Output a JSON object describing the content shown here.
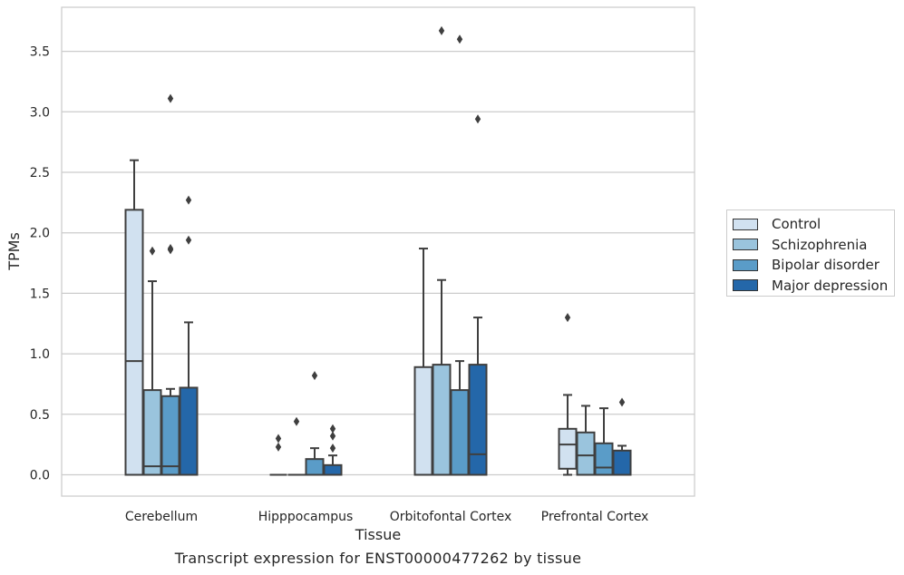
{
  "chart_data": {
    "type": "box",
    "xlabel": "Tissue",
    "ylabel": "TPMs",
    "caption": "Transcript expression for ENST00000477262 by tissue",
    "ylim": [
      -0.18,
      3.87
    ],
    "yticks": [
      0.0,
      0.5,
      1.0,
      1.5,
      2.0,
      2.5,
      3.0,
      3.5
    ],
    "ytick_labels": [
      "0.0",
      "0.5",
      "1.0",
      "1.5",
      "2.0",
      "2.5",
      "3.0",
      "3.5"
    ],
    "grid": "horizontal",
    "legend_position": "right",
    "categories": [
      "Cerebellum",
      "Hipppocampus",
      "Orbitofontal Cortex",
      "Prefrontal Cortex"
    ],
    "series": [
      {
        "name": "Control",
        "color": "#d1e1f0",
        "boxes": [
          {
            "whislo": 0.0,
            "q1": 0.0,
            "med": 0.94,
            "q3": 2.19,
            "whishi": 2.6,
            "fliers": []
          },
          {
            "whislo": 0.0,
            "q1": 0.0,
            "med": 0.0,
            "q3": 0.0,
            "whishi": 0.0,
            "fliers": [
              0.23,
              0.3
            ]
          },
          {
            "whislo": 0.0,
            "q1": 0.0,
            "med": 0.0,
            "q3": 0.89,
            "whishi": 1.87,
            "fliers": []
          },
          {
            "whislo": 0.0,
            "q1": 0.05,
            "med": 0.25,
            "q3": 0.38,
            "whishi": 0.66,
            "fliers": [
              1.3
            ]
          }
        ]
      },
      {
        "name": "Schizophrenia",
        "color": "#9ac4dd",
        "boxes": [
          {
            "whislo": 0.0,
            "q1": 0.0,
            "med": 0.07,
            "q3": 0.7,
            "whishi": 1.6,
            "fliers": [
              1.85
            ]
          },
          {
            "whislo": 0.0,
            "q1": 0.0,
            "med": 0.0,
            "q3": 0.0,
            "whishi": 0.0,
            "fliers": [
              0.44
            ]
          },
          {
            "whislo": 0.0,
            "q1": 0.0,
            "med": 0.0,
            "q3": 0.91,
            "whishi": 1.61,
            "fliers": [
              3.67
            ]
          },
          {
            "whislo": 0.0,
            "q1": 0.0,
            "med": 0.16,
            "q3": 0.35,
            "whishi": 0.57,
            "fliers": []
          }
        ]
      },
      {
        "name": "Bipolar disorder",
        "color": "#5a9cc8",
        "boxes": [
          {
            "whislo": 0.0,
            "q1": 0.0,
            "med": 0.07,
            "q3": 0.65,
            "whishi": 0.71,
            "fliers": [
              1.86,
              1.87,
              3.11
            ]
          },
          {
            "whislo": 0.0,
            "q1": 0.0,
            "med": 0.0,
            "q3": 0.13,
            "whishi": 0.22,
            "fliers": [
              0.82
            ]
          },
          {
            "whislo": 0.0,
            "q1": 0.0,
            "med": 0.0,
            "q3": 0.7,
            "whishi": 0.94,
            "fliers": [
              3.6
            ]
          },
          {
            "whislo": 0.0,
            "q1": 0.0,
            "med": 0.06,
            "q3": 0.26,
            "whishi": 0.55,
            "fliers": []
          }
        ]
      },
      {
        "name": "Major depression",
        "color": "#2467a9",
        "boxes": [
          {
            "whislo": 0.0,
            "q1": 0.0,
            "med": 0.0,
            "q3": 0.72,
            "whishi": 1.26,
            "fliers": [
              1.94,
              2.27
            ]
          },
          {
            "whislo": 0.0,
            "q1": 0.0,
            "med": 0.0,
            "q3": 0.08,
            "whishi": 0.16,
            "fliers": [
              0.22,
              0.32,
              0.38
            ]
          },
          {
            "whislo": 0.0,
            "q1": 0.0,
            "med": 0.17,
            "q3": 0.91,
            "whishi": 1.3,
            "fliers": [
              2.94
            ]
          },
          {
            "whislo": 0.0,
            "q1": 0.0,
            "med": 0.0,
            "q3": 0.2,
            "whishi": 0.24,
            "fliers": [
              0.6
            ]
          }
        ]
      }
    ]
  }
}
